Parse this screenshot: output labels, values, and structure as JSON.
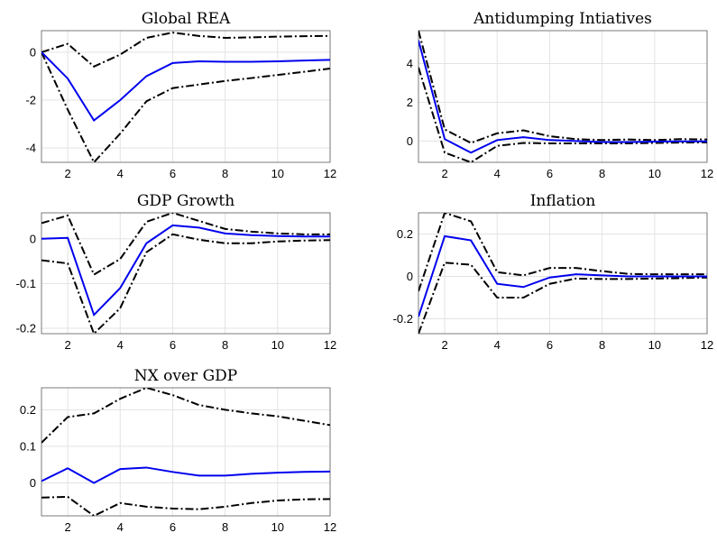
{
  "chart_data": [
    {
      "type": "line",
      "title": "Global REA",
      "x": [
        1,
        2,
        3,
        4,
        5,
        6,
        7,
        8,
        9,
        10,
        11,
        12
      ],
      "xlim": [
        1,
        12
      ],
      "ylim": [
        -4.6,
        0.9
      ],
      "xticks": [
        "2",
        "4",
        "6",
        "8",
        "10",
        "12"
      ],
      "yticks": [
        "-4",
        "-2",
        "0"
      ],
      "xtick_values": [
        2,
        4,
        6,
        8,
        10,
        12
      ],
      "ytick_values": [
        -4,
        -2,
        0
      ],
      "grid": true,
      "series": [
        {
          "role": "estimate",
          "values": [
            0,
            -1.1,
            -2.85,
            -2.0,
            -1.0,
            -0.45,
            -0.38,
            -0.4,
            -0.4,
            -0.38,
            -0.35,
            -0.32
          ]
        },
        {
          "role": "upper",
          "values": [
            0,
            0.35,
            -0.6,
            -0.1,
            0.6,
            0.82,
            0.68,
            0.6,
            0.62,
            0.65,
            0.67,
            0.68
          ]
        },
        {
          "role": "lower",
          "values": [
            0,
            -2.4,
            -4.6,
            -3.4,
            -2.05,
            -1.5,
            -1.35,
            -1.2,
            -1.08,
            -0.95,
            -0.82,
            -0.68
          ]
        }
      ]
    },
    {
      "type": "line",
      "title": "Antidumping Intiatives",
      "x": [
        1,
        2,
        3,
        4,
        5,
        6,
        7,
        8,
        9,
        10,
        11,
        12
      ],
      "xlim": [
        1,
        12
      ],
      "ylim": [
        -1.1,
        5.7
      ],
      "xticks": [
        "2",
        "4",
        "6",
        "8",
        "10",
        "12"
      ],
      "yticks": [
        "0",
        "2",
        "4"
      ],
      "xtick_values": [
        2,
        4,
        6,
        8,
        10,
        12
      ],
      "ytick_values": [
        0,
        2,
        4
      ],
      "grid": true,
      "series": [
        {
          "role": "estimate",
          "values": [
            5.2,
            0.1,
            -0.6,
            0.05,
            0.2,
            0.05,
            0.0,
            -0.05,
            -0.05,
            -0.03,
            -0.02,
            -0.02
          ]
        },
        {
          "role": "upper",
          "values": [
            5.7,
            0.6,
            -0.1,
            0.4,
            0.55,
            0.25,
            0.1,
            0.05,
            0.08,
            0.05,
            0.1,
            0.08
          ]
        },
        {
          "role": "lower",
          "values": [
            3.8,
            -0.6,
            -1.1,
            -0.25,
            -0.1,
            -0.12,
            -0.12,
            -0.12,
            -0.12,
            -0.1,
            -0.08,
            -0.07
          ]
        }
      ]
    },
    {
      "type": "line",
      "title": "GDP Growth",
      "x": [
        1,
        2,
        3,
        4,
        5,
        6,
        7,
        8,
        9,
        10,
        11,
        12
      ],
      "xlim": [
        1,
        12
      ],
      "ylim": [
        -0.212,
        0.058
      ],
      "xticks": [
        "2",
        "4",
        "6",
        "8",
        "10",
        "12"
      ],
      "yticks": [
        "-0.2",
        "-0.1",
        "0"
      ],
      "xtick_values": [
        2,
        4,
        6,
        8,
        10,
        12
      ],
      "ytick_values": [
        -0.2,
        -0.1,
        0
      ],
      "grid": true,
      "series": [
        {
          "role": "estimate",
          "values": [
            0.0,
            0.002,
            -0.17,
            -0.11,
            -0.01,
            0.03,
            0.025,
            0.012,
            0.008,
            0.006,
            0.005,
            0.005
          ]
        },
        {
          "role": "upper",
          "values": [
            0.035,
            0.052,
            -0.08,
            -0.045,
            0.038,
            0.058,
            0.04,
            0.022,
            0.016,
            0.012,
            0.01,
            0.01
          ]
        },
        {
          "role": "lower",
          "values": [
            -0.048,
            -0.055,
            -0.212,
            -0.155,
            -0.03,
            0.01,
            -0.002,
            -0.01,
            -0.01,
            -0.006,
            -0.004,
            -0.003
          ]
        }
      ]
    },
    {
      "type": "line",
      "title": "Inflation",
      "x": [
        1,
        2,
        3,
        4,
        5,
        6,
        7,
        8,
        9,
        10,
        11,
        12
      ],
      "xlim": [
        1,
        12
      ],
      "ylim": [
        -0.27,
        0.3
      ],
      "xticks": [
        "2",
        "4",
        "6",
        "8",
        "10",
        "12"
      ],
      "yticks": [
        "-0.2",
        "0",
        "0.2"
      ],
      "xtick_values": [
        2,
        4,
        6,
        8,
        10,
        12
      ],
      "ytick_values": [
        -0.2,
        0,
        0.2
      ],
      "grid": true,
      "series": [
        {
          "role": "estimate",
          "values": [
            -0.19,
            0.19,
            0.17,
            -0.035,
            -0.05,
            -0.005,
            0.01,
            0.005,
            0.0,
            0.0,
            0.0,
            0.0
          ]
        },
        {
          "role": "upper",
          "values": [
            -0.07,
            0.3,
            0.26,
            0.02,
            0.005,
            0.04,
            0.04,
            0.025,
            0.012,
            0.01,
            0.01,
            0.01
          ]
        },
        {
          "role": "lower",
          "values": [
            -0.27,
            0.065,
            0.055,
            -0.1,
            -0.1,
            -0.035,
            -0.01,
            -0.012,
            -0.012,
            -0.01,
            -0.008,
            -0.005
          ]
        }
      ]
    },
    {
      "type": "line",
      "title": "NX over GDP",
      "x": [
        1,
        2,
        3,
        4,
        5,
        6,
        7,
        8,
        9,
        10,
        11,
        12
      ],
      "xlim": [
        1,
        12
      ],
      "ylim": [
        -0.09,
        0.26
      ],
      "xticks": [
        "2",
        "4",
        "6",
        "8",
        "10",
        "12"
      ],
      "yticks": [
        "0",
        "0.1",
        "0.2"
      ],
      "xtick_values": [
        2,
        4,
        6,
        8,
        10,
        12
      ],
      "ytick_values": [
        0,
        0.1,
        0.2
      ],
      "grid": true,
      "series": [
        {
          "role": "estimate",
          "values": [
            0.005,
            0.04,
            0.0,
            0.038,
            0.042,
            0.03,
            0.02,
            0.02,
            0.025,
            0.028,
            0.03,
            0.031
          ]
        },
        {
          "role": "upper",
          "values": [
            0.11,
            0.18,
            0.19,
            0.23,
            0.26,
            0.24,
            0.213,
            0.2,
            0.19,
            0.182,
            0.17,
            0.158
          ]
        },
        {
          "role": "lower",
          "values": [
            -0.04,
            -0.038,
            -0.09,
            -0.055,
            -0.065,
            -0.07,
            -0.072,
            -0.065,
            -0.055,
            -0.048,
            -0.045,
            -0.044
          ]
        }
      ]
    }
  ],
  "colors": {
    "estimate": "#0000ee",
    "bands": "#000000",
    "grid": "#e3e3e3",
    "axis": "#5a5a5a"
  }
}
